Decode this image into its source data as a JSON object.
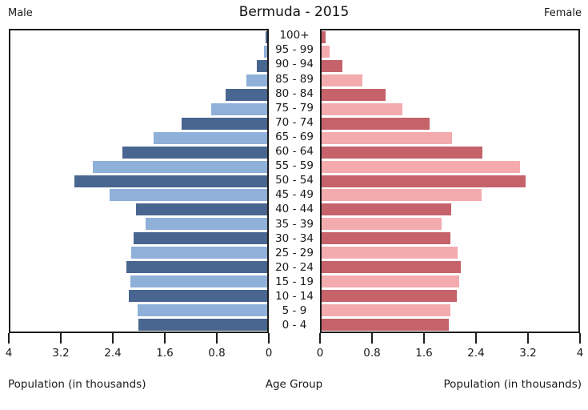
{
  "header": {
    "title": "Bermuda - 2015",
    "male_label": "Male",
    "female_label": "Female"
  },
  "axes": {
    "left_tick_labels": [
      "4",
      "3.2",
      "2.4",
      "1.6",
      "0.8",
      "0"
    ],
    "right_tick_labels": [
      "0",
      "0.8",
      "1.6",
      "2.4",
      "3.2",
      "4"
    ],
    "left_caption": "Population (in thousands)",
    "center_caption": "Age Group",
    "right_caption": "Population (in thousands)"
  },
  "colors": {
    "male_dark": "#48668f",
    "male_light": "#8fb0d8",
    "female_dark": "#c5626a",
    "female_light": "#f3abae",
    "axis": "#1c1c1c"
  },
  "chart_data": {
    "type": "bar",
    "subtype": "population-pyramid-horizontal",
    "title": "Bermuda - 2015",
    "xlabel": "Population (in thousands)",
    "ylabel": "Age Group",
    "xlim": [
      0,
      4
    ],
    "x_ticks": [
      0,
      0.8,
      1.6,
      2.4,
      3.2,
      4
    ],
    "grid": false,
    "legend_position": "top-corners",
    "categories_top_to_bottom": [
      "100+",
      "95 - 99",
      "90 - 94",
      "85 - 89",
      "80 - 84",
      "75 - 79",
      "70 - 74",
      "65 - 69",
      "60 - 64",
      "55 - 59",
      "50 - 54",
      "45 - 49",
      "40 - 44",
      "35 - 39",
      "30 - 34",
      "25 - 29",
      "20 - 24",
      "15 - 19",
      "10 - 14",
      "5 - 9",
      "0 - 4"
    ],
    "series": [
      {
        "name": "Male",
        "side": "left",
        "values": [
          0.03,
          0.05,
          0.16,
          0.32,
          0.65,
          0.87,
          1.33,
          1.77,
          2.25,
          2.72,
          3.0,
          2.46,
          2.05,
          1.9,
          2.08,
          2.12,
          2.19,
          2.13,
          2.15,
          2.02,
          2.01
        ]
      },
      {
        "name": "Female",
        "side": "right",
        "values": [
          0.06,
          0.12,
          0.32,
          0.63,
          1.0,
          1.26,
          1.68,
          2.03,
          2.51,
          3.09,
          3.18,
          2.49,
          2.02,
          1.87,
          2.01,
          2.12,
          2.17,
          2.14,
          2.11,
          2.0,
          1.98
        ]
      }
    ]
  }
}
